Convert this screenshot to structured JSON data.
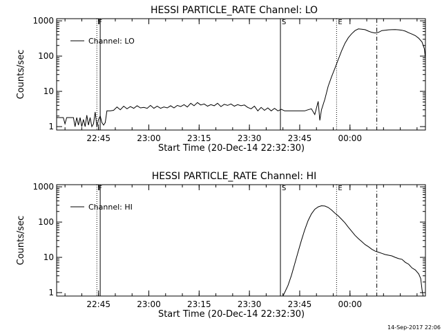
{
  "footer_timestamp": "14-Sep-2017 22:06",
  "chart_data": [
    {
      "type": "line",
      "title": "HESSI PARTICLE_RATE Channel: LO",
      "xlabel": "Start Time (20-Dec-14 22:32:30)",
      "ylabel": "Counts/sec",
      "yscale": "log",
      "xlim_minutes_from_start": [
        0,
        110
      ],
      "ylim": [
        0.8,
        1150
      ],
      "x_ticks": [
        "22:45",
        "23:00",
        "23:15",
        "23:30",
        "23:45",
        "00:00"
      ],
      "y_ticks": [
        "1",
        "10",
        "100",
        "1000"
      ],
      "legend": {
        "entries": [
          "Channel: LO"
        ],
        "placement": "top-left"
      },
      "markers": [
        {
          "label": "F",
          "style": "dotted",
          "time": "22:44:30"
        },
        {
          "label": "",
          "style": "solid",
          "time": "22:45:30"
        },
        {
          "label": "S",
          "style": "solid",
          "time": "23:39:15"
        },
        {
          "label": "E",
          "style": "dotted",
          "time": "23:56:00"
        },
        {
          "label": "",
          "style": "dashdot",
          "time": "00:08:00"
        }
      ],
      "series": [
        {
          "name": "Channel: LO",
          "points": [
            [
              0,
              1.8
            ],
            [
              2,
              1.8
            ],
            [
              2.5,
              1.2
            ],
            [
              3,
              1.8
            ],
            [
              5,
              1.8
            ],
            [
              5.5,
              1.0
            ],
            [
              6,
              1.8
            ],
            [
              6.5,
              1.1
            ],
            [
              7,
              1.8
            ],
            [
              7.5,
              1.0
            ],
            [
              8,
              1.6
            ],
            [
              8.5,
              1.0
            ],
            [
              9,
              2.1
            ],
            [
              9.5,
              1.1
            ],
            [
              10,
              1.8
            ],
            [
              10.5,
              1.0
            ],
            [
              11,
              1.2
            ],
            [
              11.5,
              2.6
            ],
            [
              12,
              1.0
            ],
            [
              12.5,
              1.6
            ],
            [
              13,
              2.0
            ],
            [
              13.5,
              1.3
            ],
            [
              14,
              1.1
            ],
            [
              14.5,
              1.3
            ],
            [
              15,
              2.8
            ],
            [
              16,
              2.8
            ],
            [
              17,
              2.9
            ],
            [
              18,
              3.6
            ],
            [
              19,
              3.0
            ],
            [
              20,
              3.8
            ],
            [
              21,
              3.2
            ],
            [
              22,
              3.7
            ],
            [
              23,
              3.3
            ],
            [
              24,
              3.9
            ],
            [
              25,
              3.4
            ],
            [
              26,
              3.5
            ],
            [
              27,
              3.3
            ],
            [
              28,
              4.0
            ],
            [
              29,
              3.3
            ],
            [
              30,
              3.8
            ],
            [
              31,
              3.3
            ],
            [
              32,
              3.6
            ],
            [
              33,
              3.4
            ],
            [
              34,
              3.9
            ],
            [
              35,
              3.4
            ],
            [
              36,
              4.0
            ],
            [
              37,
              3.7
            ],
            [
              38,
              4.2
            ],
            [
              39,
              3.6
            ],
            [
              40,
              4.6
            ],
            [
              41,
              3.9
            ],
            [
              42,
              4.8
            ],
            [
              43,
              4.1
            ],
            [
              44,
              4.4
            ],
            [
              45,
              3.8
            ],
            [
              46,
              4.2
            ],
            [
              47,
              3.9
            ],
            [
              48,
              4.6
            ],
            [
              49,
              3.7
            ],
            [
              50,
              4.3
            ],
            [
              51,
              4.0
            ],
            [
              52,
              4.4
            ],
            [
              53,
              3.8
            ],
            [
              54,
              4.2
            ],
            [
              55,
              3.9
            ],
            [
              56,
              4.1
            ],
            [
              57,
              3.5
            ],
            [
              58,
              3.2
            ],
            [
              59,
              3.8
            ],
            [
              60,
              2.8
            ],
            [
              61,
              3.5
            ],
            [
              62,
              2.9
            ],
            [
              63,
              3.4
            ],
            [
              64,
              2.8
            ],
            [
              65,
              3.3
            ],
            [
              66,
              2.8
            ],
            [
              67,
              3.1
            ],
            [
              68,
              2.8
            ],
            [
              70,
              2.8
            ],
            [
              72,
              2.8
            ],
            [
              74,
              2.8
            ],
            [
              75,
              3.0
            ],
            [
              76,
              3.2
            ],
            [
              77,
              2.2
            ],
            [
              78,
              5.2
            ],
            [
              78.5,
              1.5
            ],
            [
              79,
              3.0
            ],
            [
              80,
              6.0
            ],
            [
              81,
              14
            ],
            [
              82,
              26
            ],
            [
              83,
              45
            ],
            [
              84,
              80
            ],
            [
              85,
              140
            ],
            [
              86,
              230
            ],
            [
              87,
              330
            ],
            [
              88,
              430
            ],
            [
              89,
              530
            ],
            [
              90,
              590
            ],
            [
              91,
              580
            ],
            [
              92,
              560
            ],
            [
              93,
              510
            ],
            [
              94,
              470
            ],
            [
              95,
              450
            ],
            [
              96,
              470
            ],
            [
              97,
              530
            ],
            [
              98,
              540
            ],
            [
              99,
              555
            ],
            [
              100,
              560
            ],
            [
              101,
              565
            ],
            [
              102,
              555
            ],
            [
              103,
              540
            ],
            [
              104,
              510
            ],
            [
              105,
              460
            ],
            [
              106,
              420
            ],
            [
              107,
              380
            ],
            [
              108,
              320
            ],
            [
              109,
              250
            ],
            [
              109.7,
              160
            ],
            [
              110,
              85
            ]
          ]
        }
      ]
    },
    {
      "type": "line",
      "title": "HESSI PARTICLE_RATE Channel: HI",
      "xlabel": "Start Time (20-Dec-14 22:32:30)",
      "ylabel": "Counts/sec",
      "yscale": "log",
      "xlim_minutes_from_start": [
        0,
        110
      ],
      "ylim": [
        0.8,
        1150
      ],
      "x_ticks": [
        "22:45",
        "23:00",
        "23:15",
        "23:30",
        "23:45",
        "00:00"
      ],
      "y_ticks": [
        "1",
        "10",
        "100",
        "1000"
      ],
      "legend": {
        "entries": [
          "Channel: HI"
        ],
        "placement": "top-left"
      },
      "markers": [
        {
          "label": "F",
          "style": "dotted",
          "time": "22:44:30"
        },
        {
          "label": "",
          "style": "solid",
          "time": "22:45:30"
        },
        {
          "label": "S",
          "style": "solid",
          "time": "23:39:15"
        },
        {
          "label": "E",
          "style": "dotted",
          "time": "23:56:00"
        },
        {
          "label": "",
          "style": "dashdot",
          "time": "00:08:00"
        }
      ],
      "series": [
        {
          "name": "Channel: HI",
          "points": [
            [
              67.5,
              0.8
            ],
            [
              68,
              1.0
            ],
            [
              69,
              1.6
            ],
            [
              70,
              3.0
            ],
            [
              71,
              6.5
            ],
            [
              72,
              14
            ],
            [
              73,
              30
            ],
            [
              74,
              60
            ],
            [
              75,
              110
            ],
            [
              76,
              170
            ],
            [
              77,
              230
            ],
            [
              78,
              270
            ],
            [
              79,
              290
            ],
            [
              80,
              285
            ],
            [
              81,
              260
            ],
            [
              82,
              220
            ],
            [
              83,
              180
            ],
            [
              84,
              150
            ],
            [
              85,
              120
            ],
            [
              86,
              95
            ],
            [
              87,
              72
            ],
            [
              88,
              55
            ],
            [
              89,
              42
            ],
            [
              90,
              34
            ],
            [
              91,
              28
            ],
            [
              92,
              23
            ],
            [
              93,
              20
            ],
            [
              94,
              17
            ],
            [
              95,
              15
            ],
            [
              96,
              14
            ],
            [
              97,
              13
            ],
            [
              98,
              12
            ],
            [
              99,
              11.5
            ],
            [
              100,
              11
            ],
            [
              101,
              10
            ],
            [
              102,
              9.2
            ],
            [
              103,
              8.8
            ],
            [
              104,
              7.2
            ],
            [
              105,
              6.4
            ],
            [
              106,
              5.0
            ],
            [
              107,
              4.4
            ],
            [
              108,
              3.4
            ],
            [
              108.6,
              2.5
            ],
            [
              109,
              1.2
            ],
            [
              109.3,
              0.8
            ]
          ]
        }
      ]
    }
  ]
}
